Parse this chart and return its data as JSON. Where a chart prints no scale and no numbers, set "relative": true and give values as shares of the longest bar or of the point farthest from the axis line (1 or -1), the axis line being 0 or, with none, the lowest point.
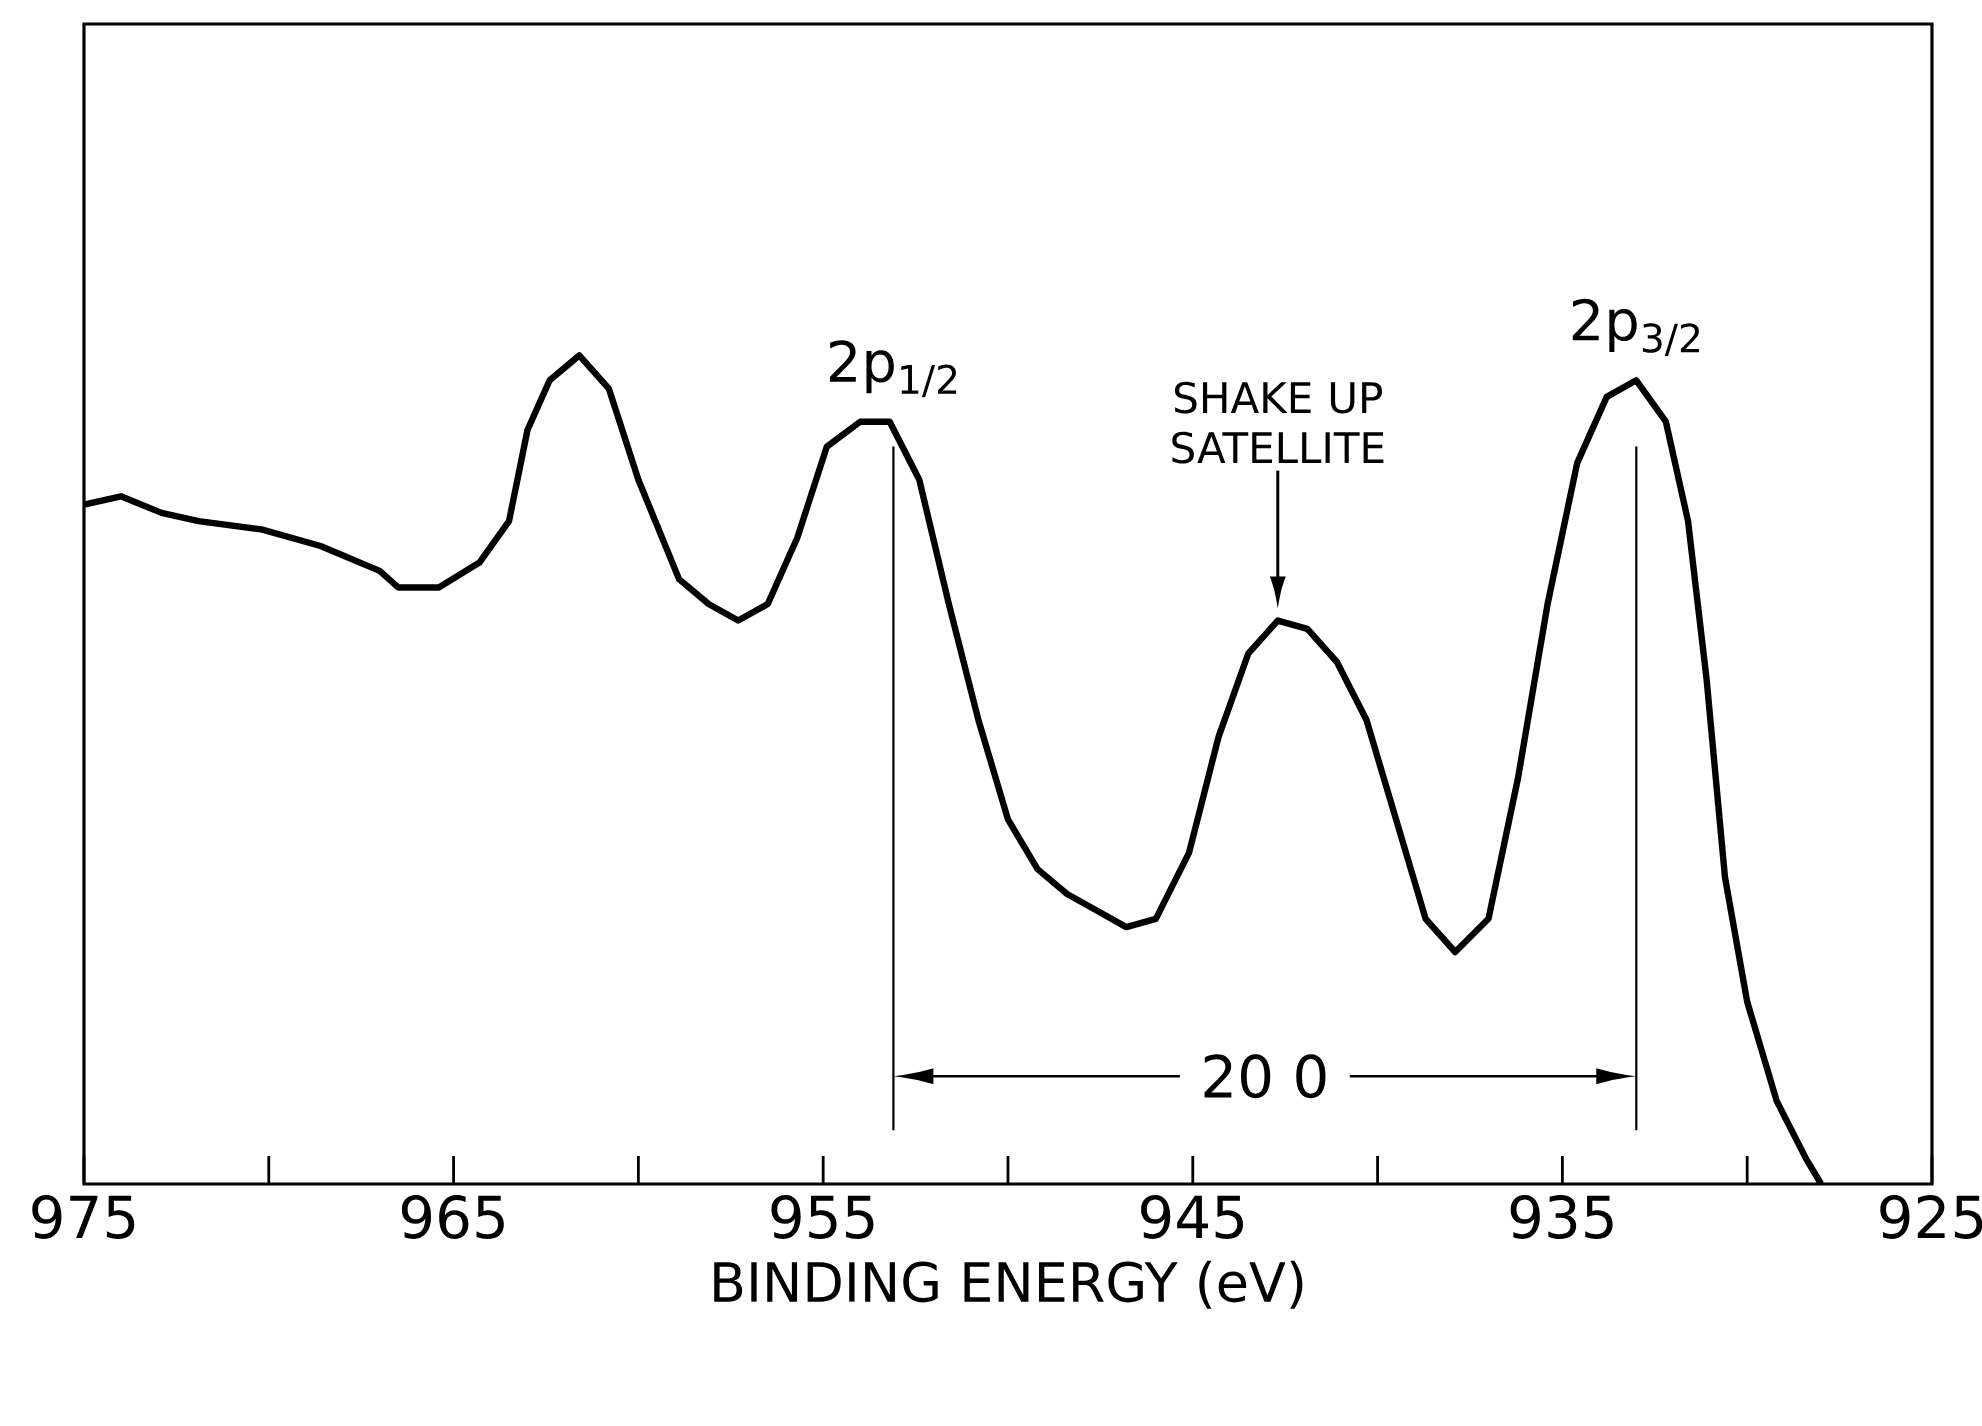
{
  "chart_data": {
    "type": "line",
    "relative": true,
    "xlabel": "BINDING ENERGY (eV)",
    "xlim": [
      975,
      925
    ],
    "xticks": [
      975,
      {
        "value": 970,
        "label": null
      },
      965,
      {
        "value": 960,
        "label": null
      },
      955,
      {
        "value": 950,
        "label": null
      },
      945,
      {
        "value": 940,
        "label": null
      },
      935,
      {
        "value": 930,
        "label": null
      },
      925
    ],
    "grid": false,
    "marker": "none",
    "line_style": "solid",
    "series": [
      {
        "color": "#000000",
        "x": [
          975,
          974.0,
          972.9,
          971.9,
          970.2,
          968.6,
          967.0,
          966.5,
          965.4,
          964.3,
          963.5,
          963.0,
          962.4,
          961.6,
          960.8,
          960.0,
          958.9,
          958.1,
          957.3,
          956.5,
          955.7,
          954.9,
          954.0,
          953.2,
          952.4,
          951.6,
          950.8,
          950.0,
          949.2,
          948.4,
          947.6,
          946.8,
          946.0,
          945.1,
          944.3,
          943.5,
          942.7,
          941.9,
          941.1,
          940.3,
          939.5,
          938.7,
          937.9,
          937.0,
          936.2,
          935.4,
          934.6,
          933.8,
          933.0,
          932.2,
          931.6,
          931.1,
          930.6,
          930.0,
          929.2,
          928.4,
          928.0
        ],
        "values": [
          0.82,
          0.83,
          0.81,
          0.8,
          0.79,
          0.77,
          0.74,
          0.72,
          0.72,
          0.75,
          0.8,
          0.91,
          0.97,
          1.0,
          0.96,
          0.85,
          0.73,
          0.7,
          0.68,
          0.7,
          0.78,
          0.89,
          0.92,
          0.92,
          0.85,
          0.7,
          0.56,
          0.44,
          0.38,
          0.35,
          0.33,
          0.31,
          0.32,
          0.4,
          0.54,
          0.64,
          0.68,
          0.67,
          0.63,
          0.56,
          0.44,
          0.32,
          0.28,
          0.32,
          0.49,
          0.7,
          0.87,
          0.95,
          0.97,
          0.92,
          0.8,
          0.61,
          0.37,
          0.22,
          0.1,
          0.03,
          0.0
        ]
      }
    ],
    "ref_lines": [
      {
        "axis": "x",
        "value": 953.1
      },
      {
        "axis": "x",
        "value": 933.0
      }
    ],
    "annotations": [
      {
        "text": "2p$_{1/2}$",
        "x": 953.1,
        "y": 0.92
      },
      "SHAKE UP SATELLITE",
      {
        "text": "2p$_{3/2}$",
        "x": 933.0,
        "y": 0.97
      },
      "20 0"
    ]
  }
}
